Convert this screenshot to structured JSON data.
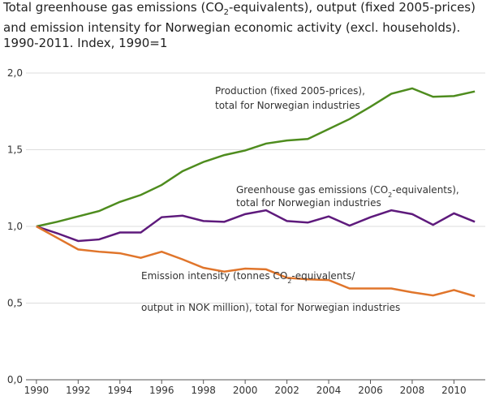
{
  "chart_data": {
    "type": "line",
    "title": [
      "Total greenhouse gas emissions (CO",
      "2",
      "-equivalents), output (fixed 2005-prices) and emission intensity for Norwegian economic activity (excl. households). 1990-2011. Index, 1990=1"
    ],
    "x": [
      1990,
      1991,
      1992,
      1993,
      1994,
      1995,
      1996,
      1997,
      1998,
      1999,
      2000,
      2001,
      2002,
      2003,
      2004,
      2005,
      2006,
      2007,
      2008,
      2009,
      2010,
      2011
    ],
    "xlim": [
      1989.5,
      2011.5
    ],
    "xticks": [
      1990,
      1992,
      1994,
      1996,
      1998,
      2000,
      2002,
      2004,
      2006,
      2008,
      2010
    ],
    "ylim": [
      0,
      2
    ],
    "yticks": [
      {
        "value": 0,
        "label": "0,0"
      },
      {
        "value": 0.5,
        "label": "0,5"
      },
      {
        "value": 1,
        "label": "1,0"
      },
      {
        "value": 1.5,
        "label": "1,5"
      },
      {
        "value": 2,
        "label": "2,0"
      }
    ],
    "grid": true,
    "series": [
      {
        "name": [
          [
            "Production (fixed 2005-prices),"
          ],
          [
            "total for Norwegian industries"
          ]
        ],
        "color": "#4e8c1e",
        "values": [
          1.0,
          1.03,
          1.065,
          1.1,
          1.16,
          1.205,
          1.27,
          1.36,
          1.42,
          1.465,
          1.495,
          1.54,
          1.56,
          1.57,
          1.635,
          1.7,
          1.78,
          1.865,
          1.9,
          1.845,
          1.85,
          1.88
        ]
      },
      {
        "name": [
          [
            "Greenhouse gas emissions (CO",
            "2",
            "-equivalents),"
          ],
          [
            "total for Norwegian industries"
          ]
        ],
        "color": "#5e1a7c",
        "values": [
          1.0,
          0.955,
          0.905,
          0.915,
          0.96,
          0.96,
          1.06,
          1.07,
          1.035,
          1.03,
          1.08,
          1.105,
          1.035,
          1.025,
          1.065,
          1.005,
          1.06,
          1.105,
          1.08,
          1.01,
          1.085,
          1.03
        ]
      },
      {
        "name": [
          [
            "Emission intensity (tonnes CO",
            "2",
            "-equivalents/"
          ],
          [
            "output in NOK million), total for Norwegian industries"
          ]
        ],
        "color": "#e0752b",
        "values": [
          1.0,
          0.925,
          0.85,
          0.835,
          0.825,
          0.795,
          0.835,
          0.785,
          0.73,
          0.705,
          0.725,
          0.72,
          0.665,
          0.655,
          0.65,
          0.595,
          0.595,
          0.595,
          0.57,
          0.55,
          0.585,
          0.545
        ]
      }
    ]
  }
}
